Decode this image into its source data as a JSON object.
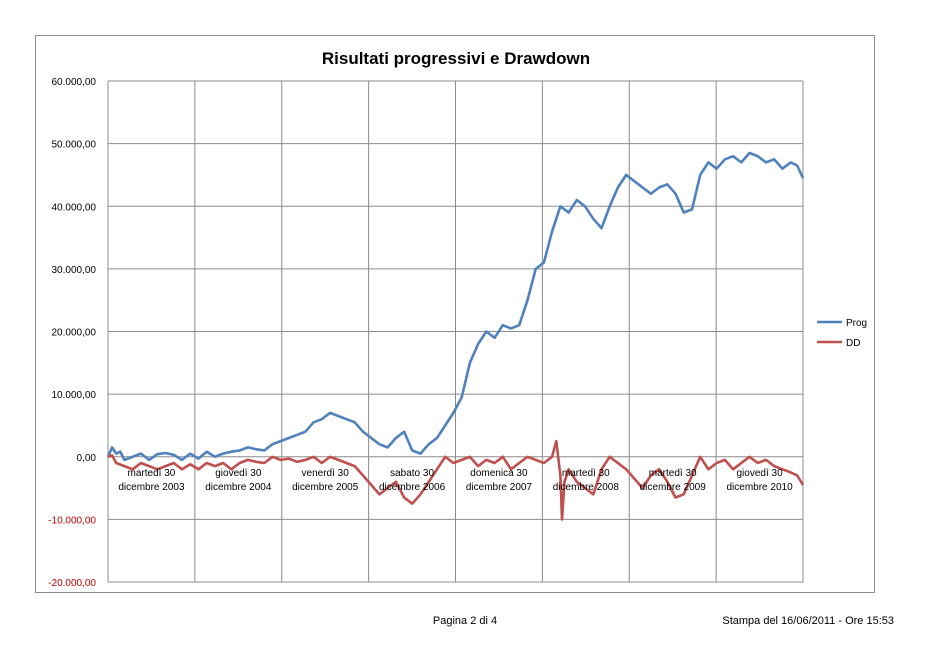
{
  "chart_data": {
    "type": "line",
    "title": "Risultati progressivi e Drawdown",
    "xlabel": "",
    "ylabel": "",
    "ylim": [
      -20000,
      60000
    ],
    "y_ticks": [
      "60.000,00",
      "50.000,00",
      "40.000,00",
      "30.000,00",
      "20.000,00",
      "10.000,00",
      "0,00",
      "-10.000,00",
      "-20.000,00"
    ],
    "y_tick_values": [
      60000,
      50000,
      40000,
      30000,
      20000,
      10000,
      0,
      -10000,
      -20000
    ],
    "negative_tick_color": "#c00000",
    "grid": true,
    "legend_position": "right",
    "x_categories": [
      {
        "line1": "martedì 30",
        "line2": "dicembre 2003"
      },
      {
        "line1": "giovedì 30",
        "line2": "dicembre 2004"
      },
      {
        "line1": "venerdì 30",
        "line2": "dicembre 2005"
      },
      {
        "line1": "sabato 30",
        "line2": "dicembre 2006"
      },
      {
        "line1": "domenica 30",
        "line2": "dicembre 2007"
      },
      {
        "line1": "martedì 30",
        "line2": "dicembre 2008"
      },
      {
        "line1": "martedì 30",
        "line2": "dicembre 2009"
      },
      {
        "line1": "giovedì 30",
        "line2": "dicembre 2010"
      }
    ],
    "x_range": [
      2003.0,
      2011.45
    ],
    "series": [
      {
        "name": "Prog",
        "color": "#4f81bd",
        "x": [
          2003.0,
          2003.05,
          2003.1,
          2003.15,
          2003.2,
          2003.3,
          2003.4,
          2003.5,
          2003.6,
          2003.7,
          2003.8,
          2003.9,
          2004.0,
          2004.1,
          2004.2,
          2004.3,
          2004.4,
          2004.5,
          2004.6,
          2004.7,
          2004.8,
          2004.9,
          2005.0,
          2005.1,
          2005.2,
          2005.3,
          2005.4,
          2005.5,
          2005.6,
          2005.7,
          2005.8,
          2005.9,
          2006.0,
          2006.1,
          2006.2,
          2006.3,
          2006.4,
          2006.5,
          2006.6,
          2006.7,
          2006.8,
          2006.9,
          2007.0,
          2007.1,
          2007.2,
          2007.3,
          2007.4,
          2007.5,
          2007.6,
          2007.7,
          2007.8,
          2007.9,
          2008.0,
          2008.1,
          2008.2,
          2008.3,
          2008.4,
          2008.5,
          2008.6,
          2008.7,
          2008.8,
          2008.9,
          2009.0,
          2009.1,
          2009.2,
          2009.3,
          2009.4,
          2009.5,
          2009.6,
          2009.7,
          2009.8,
          2009.9,
          2010.0,
          2010.1,
          2010.2,
          2010.3,
          2010.4,
          2010.5,
          2010.6,
          2010.7,
          2010.8,
          2010.9,
          2011.0,
          2011.1,
          2011.2,
          2011.3,
          2011.38,
          2011.45
        ],
        "values": [
          0,
          1500,
          500,
          800,
          -500,
          0,
          500,
          -500,
          400,
          600,
          300,
          -500,
          500,
          -300,
          800,
          0,
          500,
          800,
          1000,
          1500,
          1200,
          1000,
          2000,
          2500,
          3000,
          3500,
          4000,
          5500,
          6000,
          7000,
          6500,
          6000,
          5500,
          4000,
          3000,
          2000,
          1500,
          3000,
          4000,
          1000,
          500,
          2000,
          3000,
          5000,
          7000,
          9500,
          15000,
          18000,
          20000,
          19000,
          21000,
          20500,
          21000,
          25000,
          30000,
          31000,
          36000,
          40000,
          39000,
          41000,
          40000,
          38000,
          36500,
          40000,
          43000,
          45000,
          44000,
          43000,
          42000,
          43000,
          43500,
          42000,
          39000,
          39500,
          45000,
          47000,
          46000,
          47500,
          48000,
          47000,
          48500,
          48000,
          47000,
          47500,
          46000,
          47000,
          46500,
          44500
        ]
      },
      {
        "name": "DD",
        "color": "#c0504d",
        "x": [
          2003.0,
          2003.05,
          2003.1,
          2003.2,
          2003.3,
          2003.4,
          2003.5,
          2003.6,
          2003.7,
          2003.8,
          2003.9,
          2004.0,
          2004.1,
          2004.2,
          2004.3,
          2004.4,
          2004.5,
          2004.6,
          2004.7,
          2004.8,
          2004.9,
          2005.0,
          2005.1,
          2005.2,
          2005.3,
          2005.4,
          2005.5,
          2005.6,
          2005.7,
          2005.8,
          2005.9,
          2006.0,
          2006.1,
          2006.2,
          2006.3,
          2006.4,
          2006.5,
          2006.6,
          2006.7,
          2006.8,
          2006.9,
          2007.0,
          2007.1,
          2007.2,
          2007.3,
          2007.4,
          2007.5,
          2007.6,
          2007.7,
          2007.8,
          2007.9,
          2008.0,
          2008.1,
          2008.2,
          2008.3,
          2008.4,
          2008.45,
          2008.5,
          2008.52,
          2008.55,
          2008.6,
          2008.7,
          2008.8,
          2008.9,
          2009.0,
          2009.1,
          2009.2,
          2009.3,
          2009.4,
          2009.5,
          2009.6,
          2009.7,
          2009.8,
          2009.9,
          2010.0,
          2010.1,
          2010.2,
          2010.3,
          2010.4,
          2010.5,
          2010.6,
          2010.7,
          2010.8,
          2010.9,
          2011.0,
          2011.1,
          2011.2,
          2011.3,
          2011.38,
          2011.45
        ],
        "values": [
          0,
          200,
          -1000,
          -1500,
          -2000,
          -1000,
          -1500,
          -2000,
          -1500,
          -1000,
          -2000,
          -1200,
          -2000,
          -1000,
          -1500,
          -1000,
          -2000,
          -1000,
          -500,
          -800,
          -1000,
          0,
          -500,
          -300,
          -800,
          -500,
          0,
          -1000,
          0,
          -500,
          -1000,
          -1500,
          -3000,
          -4500,
          -6000,
          -5000,
          -4000,
          -6500,
          -7500,
          -6000,
          -4000,
          -2000,
          0,
          -1000,
          -500,
          0,
          -1500,
          -500,
          -1000,
          0,
          -2000,
          -1000,
          0,
          -500,
          -1000,
          0,
          2500,
          -3000,
          -10000,
          -4000,
          -2000,
          -4000,
          -5000,
          -6000,
          -2000,
          0,
          -1000,
          -2000,
          -3500,
          -5000,
          -3000,
          -2000,
          -4000,
          -6500,
          -6000,
          -3000,
          0,
          -2000,
          -1000,
          -500,
          -2000,
          -1000,
          0,
          -1000,
          -500,
          -1500,
          -2000,
          -2500,
          -3000,
          -4500
        ]
      }
    ]
  },
  "footer": {
    "page": "Pagina 2 di 4",
    "stamp": "Stampa del 16/06/2011 - Ore 15:53"
  }
}
